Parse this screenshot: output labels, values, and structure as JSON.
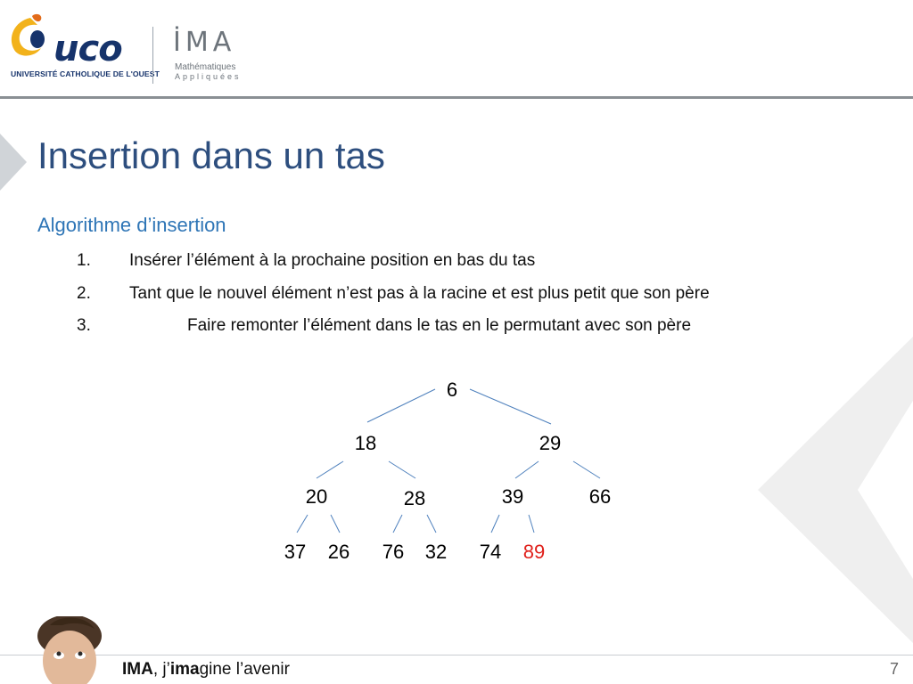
{
  "header": {
    "uco_logo_text": "uco",
    "uco_subtitle": "UNIVERSITÉ CATHOLIQUE DE L'OUEST",
    "ima_logo_text": "İMA",
    "ima_subtitle_line1": "Mathématiques",
    "ima_subtitle_line2": "Appliquées"
  },
  "slide": {
    "title": "Insertion dans un tas",
    "subtitle": "Algorithme d’insertion",
    "steps": [
      {
        "num": "1.",
        "text": "Insérer l’élément à la prochaine position en bas du tas"
      },
      {
        "num": "2.",
        "text": "Tant que le nouvel élément n’est pas à la racine et est plus petit que son père"
      },
      {
        "num": "3.",
        "text": "Faire remonter l’élément dans le tas en le permutant avec son père"
      }
    ]
  },
  "tree": {
    "nodes": [
      {
        "id": "n6",
        "label": "6",
        "color": "#000000"
      },
      {
        "id": "n18",
        "label": "18",
        "color": "#000000"
      },
      {
        "id": "n29",
        "label": "29",
        "color": "#000000"
      },
      {
        "id": "n20",
        "label": "20",
        "color": "#000000"
      },
      {
        "id": "n28",
        "label": "28",
        "color": "#000000"
      },
      {
        "id": "n39",
        "label": "39",
        "color": "#000000"
      },
      {
        "id": "n66",
        "label": "66",
        "color": "#000000"
      },
      {
        "id": "n37",
        "label": "37",
        "color": "#000000"
      },
      {
        "id": "n26",
        "label": "26",
        "color": "#000000"
      },
      {
        "id": "n76",
        "label": "76",
        "color": "#000000"
      },
      {
        "id": "n32",
        "label": "32",
        "color": "#000000"
      },
      {
        "id": "n74",
        "label": "74",
        "color": "#000000"
      },
      {
        "id": "n89",
        "label": "89",
        "color": "#e0201b"
      }
    ],
    "edge_color": "#4f81bd"
  },
  "footer": {
    "brand": "IMA",
    "sep": ", j’",
    "brand2": "ima",
    "rest": "gine l’avenir",
    "page_number": "7"
  },
  "colors": {
    "title": "#2d4e7e",
    "subtitle": "#2e75b6",
    "uco_navy": "#16336b",
    "uco_yellow": "#f2b21b",
    "chevron_gray": "#eeeeee"
  }
}
